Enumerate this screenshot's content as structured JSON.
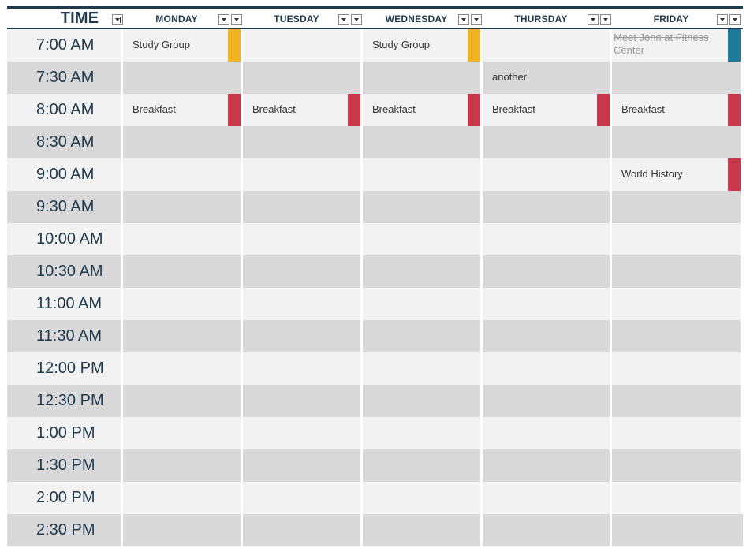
{
  "colors": {
    "header_text": "#1f3a4d",
    "study": "#f0b323",
    "meal": "#c8374a",
    "fitness": "#1f7a99"
  },
  "header": {
    "time": "TIME",
    "monday": "MONDAY",
    "tuesday": "TUESDAY",
    "wednesday": "WEDNESDAY",
    "thursday": "THURSDAY",
    "friday": "FRIDAY"
  },
  "times": [
    "7:00 AM",
    "7:30 AM",
    "8:00 AM",
    "8:30 AM",
    "9:00 AM",
    "9:30 AM",
    "10:00 AM",
    "10:30 AM",
    "11:00 AM",
    "11:30 AM",
    "12:00 PM",
    "12:30 PM",
    "1:00 PM",
    "1:30 PM",
    "2:00 PM",
    "2:30 PM"
  ],
  "events": {
    "mon_700": "Study Group",
    "wed_700": "Study Group",
    "fri_700": "Meet John at Fitness Center",
    "thu_730": "another",
    "mon_800": "Breakfast",
    "tue_800": "Breakfast",
    "wed_800": "Breakfast",
    "thu_800": "Breakfast",
    "fri_800": "Breakfast",
    "fri_900": "World History"
  }
}
